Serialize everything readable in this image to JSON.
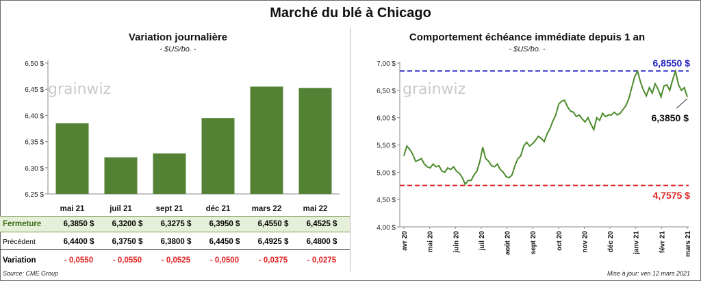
{
  "title": "Marché du blé à Chicago",
  "left": {
    "title": "Variation journalière",
    "subtitle": "- $US/bo. -",
    "watermark": "grainwiz",
    "rows": {
      "close_label": "Fermeture",
      "prev_label": "Précédent",
      "var_label": "Variation",
      "close": [
        "6,3850  $",
        "6,3200  $",
        "6,3275  $",
        "6,3950  $",
        "6,4550  $",
        "6,4525  $"
      ],
      "prev": [
        "6,4400  $",
        "6,3750  $",
        "6,3800  $",
        "6,4450  $",
        "6,4925  $",
        "6,4800  $"
      ],
      "variation": [
        "- 0,0550",
        "- 0,0550",
        "- 0,0525",
        "- 0,0500",
        "- 0,0375",
        "- 0,0275"
      ]
    }
  },
  "right": {
    "title": "Comportement  échéance immédiate depuis 1 an",
    "subtitle": "- $US/bo. -",
    "watermark": "grainwiz",
    "max_label": "6,8550 $",
    "min_label": "4,7575 $",
    "last_label": "6,3850 $"
  },
  "footer": {
    "source": "Source: CME Group",
    "updated": "Mise à jour: ven 12 mars 2021"
  },
  "colors": {
    "bar": "#548235",
    "line": "#4a8a2a",
    "max": "#1f1fbf",
    "min": "#e02020"
  },
  "chart_data": [
    {
      "type": "bar",
      "title": "Variation journalière",
      "categories": [
        "mai 21",
        "juil 21",
        "sept 21",
        "déc 21",
        "mars 22",
        "mai 22"
      ],
      "values": [
        6.385,
        6.32,
        6.3275,
        6.395,
        6.455,
        6.4525
      ],
      "ylim": [
        6.25,
        6.5
      ],
      "yticks": [
        6.25,
        6.3,
        6.35,
        6.4,
        6.45,
        6.5
      ],
      "ytick_labels": [
        "6,25 $",
        "6,30 $",
        "6,35 $",
        "6,40 $",
        "6,45 $",
        "6,50 $"
      ],
      "grid": false
    },
    {
      "type": "line",
      "title": "Comportement  échéance immédiate depuis 1 an",
      "ylim": [
        4.0,
        7.0
      ],
      "yticks": [
        4.0,
        4.5,
        5.0,
        5.5,
        6.0,
        6.5,
        7.0
      ],
      "ytick_labels": [
        "4,00 $",
        "4,50 $",
        "5,00 $",
        "5,50 $",
        "6,00 $",
        "6,50 $",
        "7,00 $"
      ],
      "xticks": [
        "avr 20",
        "mai 20",
        "juin 20",
        "juil 20",
        "août 20",
        "sept 20",
        "oct 20",
        "nov 20",
        "déc 20",
        "janv 21",
        "févr 21",
        "mars 21"
      ],
      "reference_lines": [
        {
          "label": "6,8550 $",
          "value": 6.855
        },
        {
          "label": "4,7575 $",
          "value": 4.7575
        }
      ],
      "series": [
        {
          "values": [
            5.3,
            5.48,
            5.42,
            5.33,
            5.2,
            5.22,
            5.25,
            5.15,
            5.1,
            5.08,
            5.15,
            5.1,
            5.12,
            5.02,
            5.0,
            5.08,
            5.05,
            5.1,
            5.02,
            4.98,
            4.9,
            4.78,
            4.85,
            4.85,
            4.95,
            5.02,
            5.2,
            5.46,
            5.25,
            5.2,
            5.12,
            5.1,
            5.15,
            5.05,
            5.0,
            4.92,
            4.9,
            4.95,
            5.12,
            5.25,
            5.3,
            5.48,
            5.55,
            5.48,
            5.52,
            5.58,
            5.66,
            5.62,
            5.56,
            5.7,
            5.8,
            5.94,
            6.05,
            6.25,
            6.3,
            6.32,
            6.2,
            6.12,
            6.1,
            6.02,
            6.05,
            5.98,
            5.92,
            6.0,
            5.88,
            5.78,
            6.0,
            5.95,
            6.08,
            6.02,
            6.05,
            6.05,
            6.1,
            6.05,
            6.08,
            6.15,
            6.22,
            6.35,
            6.55,
            6.75,
            6.85,
            6.65,
            6.5,
            6.4,
            6.55,
            6.45,
            6.62,
            6.52,
            6.38,
            6.58,
            6.6,
            6.5,
            6.7,
            6.85,
            6.6,
            6.5,
            6.55,
            6.38
          ]
        }
      ]
    }
  ]
}
